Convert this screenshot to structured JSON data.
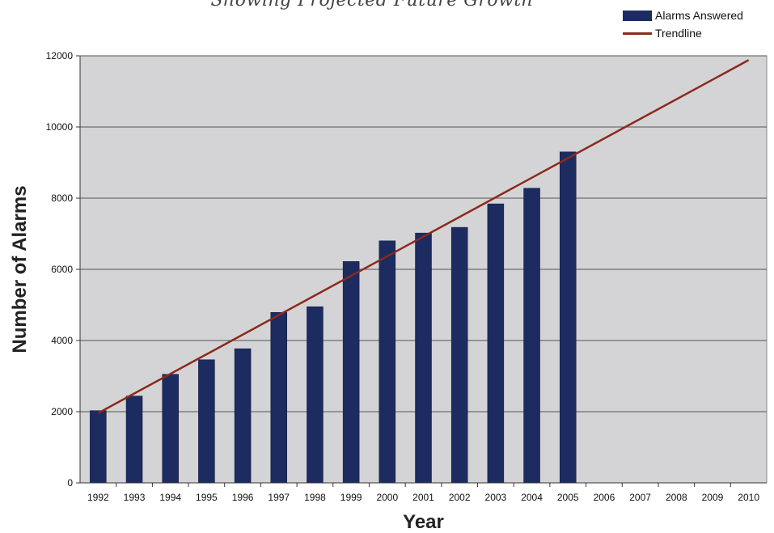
{
  "chart_data": {
    "type": "bar",
    "subtitle": "Showing Projected Future Growth",
    "xlabel": "Year",
    "ylabel": "Number of Alarms",
    "categories": [
      "1992",
      "1993",
      "1994",
      "1995",
      "1996",
      "1997",
      "1998",
      "1999",
      "2000",
      "2001",
      "2002",
      "2003",
      "2004",
      "2005",
      "2006",
      "2007",
      "2008",
      "2009",
      "2010"
    ],
    "series": [
      {
        "name": "Alarms Answered",
        "values": [
          2030,
          2440,
          3050,
          3460,
          3770,
          4790,
          4950,
          6220,
          6800,
          7020,
          7180,
          7840,
          8280,
          9300,
          null,
          null,
          null,
          null,
          null
        ]
      }
    ],
    "trendline": {
      "name": "Trendline",
      "start": {
        "x": "1992",
        "y": 1960
      },
      "end": {
        "x": "2010",
        "y": 11880
      }
    },
    "yticks": [
      0,
      2000,
      4000,
      6000,
      8000,
      10000,
      12000
    ],
    "ylim": [
      0,
      12000
    ],
    "grid": true,
    "legend_position": "top-right",
    "colors": {
      "bar": "#1c2b60",
      "trend": "#8b2a1c",
      "plot_bg": "#d4d4d6",
      "grid": "#555555"
    }
  }
}
